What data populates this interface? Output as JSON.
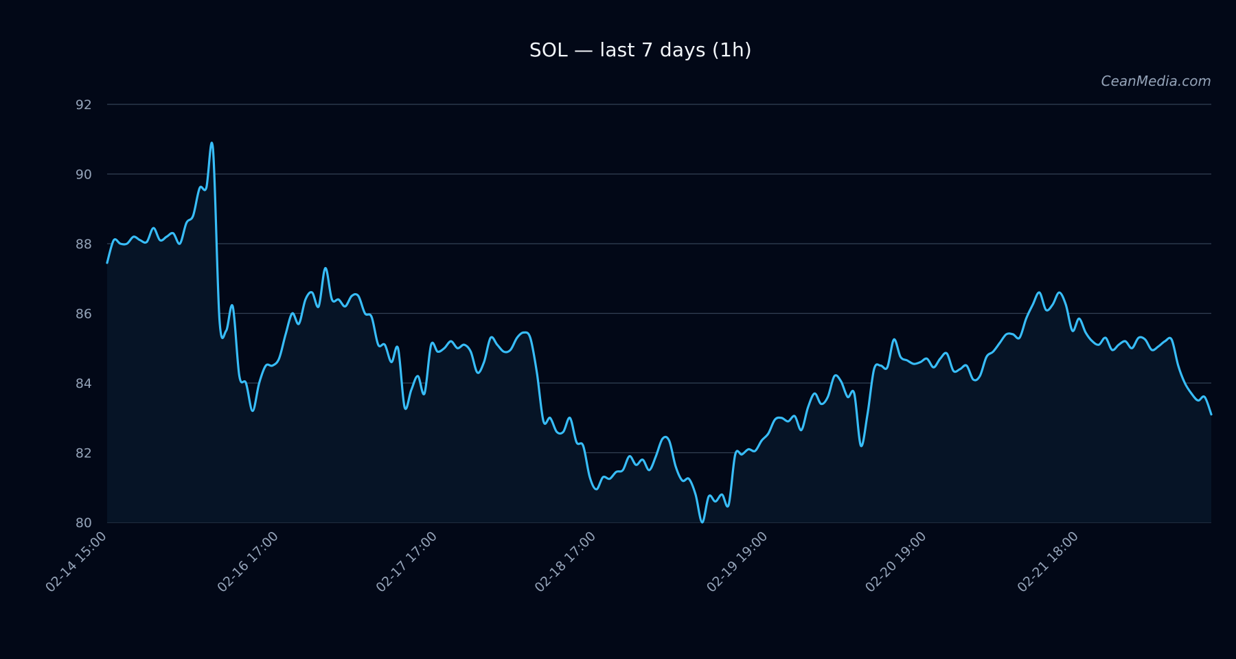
{
  "watermark": "CeanMedia.com",
  "colors": {
    "background": "#020817",
    "line": "#38bdf8",
    "fill": "#061426",
    "grid": "#334155",
    "text": "#94a3b8",
    "title": "#f1f5f9"
  },
  "chart_data": {
    "type": "area",
    "title": "SOL — last 7 days (1h)",
    "xlabel": "",
    "ylabel": "",
    "ylim": [
      80,
      92
    ],
    "yticks": [
      80,
      82,
      84,
      86,
      88,
      90,
      92
    ],
    "grid": true,
    "xticks": [
      {
        "index": 0,
        "label": "02-14 15:00"
      },
      {
        "index": 26,
        "label": "02-16 17:00"
      },
      {
        "index": 50,
        "label": "02-17 17:00"
      },
      {
        "index": 74,
        "label": "02-18 17:00"
      },
      {
        "index": 100,
        "label": "02-19 19:00"
      },
      {
        "index": 124,
        "label": "02-20 19:00"
      },
      {
        "index": 147,
        "label": "02-21 18:00"
      }
    ],
    "series": [
      {
        "values": [
          87.45,
          88.1,
          88.0,
          88.0,
          88.2,
          88.1,
          88.05,
          88.45,
          88.1,
          88.2,
          88.3,
          88.0,
          88.6,
          88.8,
          89.6,
          89.6,
          90.75,
          85.8,
          85.5,
          86.2,
          84.2,
          84.0,
          83.2,
          84.0,
          84.5,
          84.5,
          84.7,
          85.4,
          86.0,
          85.7,
          86.4,
          86.6,
          86.2,
          87.3,
          86.4,
          86.4,
          86.2,
          86.5,
          86.5,
          86.0,
          85.9,
          85.1,
          85.1,
          84.6,
          85.0,
          83.3,
          83.8,
          84.2,
          83.7,
          85.1,
          84.9,
          85.0,
          85.2,
          85.0,
          85.1,
          84.9,
          84.3,
          84.6,
          85.3,
          85.1,
          84.9,
          84.95,
          85.3,
          85.45,
          85.3,
          84.3,
          82.9,
          83.0,
          82.6,
          82.6,
          83.0,
          82.3,
          82.2,
          81.3,
          80.95,
          81.3,
          81.25,
          81.45,
          81.5,
          81.9,
          81.65,
          81.8,
          81.5,
          81.9,
          82.4,
          82.35,
          81.6,
          81.2,
          81.25,
          80.8,
          80.0,
          80.75,
          80.6,
          80.8,
          80.5,
          81.95,
          81.95,
          82.1,
          82.05,
          82.35,
          82.55,
          82.95,
          83.0,
          82.9,
          83.05,
          82.65,
          83.3,
          83.7,
          83.4,
          83.6,
          84.2,
          84.05,
          83.6,
          83.7,
          82.2,
          83.1,
          84.4,
          84.5,
          84.45,
          85.25,
          84.75,
          84.65,
          84.55,
          84.6,
          84.7,
          84.45,
          84.7,
          84.85,
          84.35,
          84.4,
          84.5,
          84.1,
          84.2,
          84.75,
          84.9,
          85.15,
          85.4,
          85.4,
          85.3,
          85.85,
          86.25,
          86.6,
          86.1,
          86.25,
          86.6,
          86.25,
          85.5,
          85.85,
          85.45,
          85.2,
          85.1,
          85.3,
          84.95,
          85.1,
          85.2,
          85.0,
          85.3,
          85.25,
          84.95,
          85.05,
          85.2,
          85.25,
          84.5,
          84.0,
          83.7,
          83.5,
          83.6,
          83.1
        ]
      }
    ]
  }
}
